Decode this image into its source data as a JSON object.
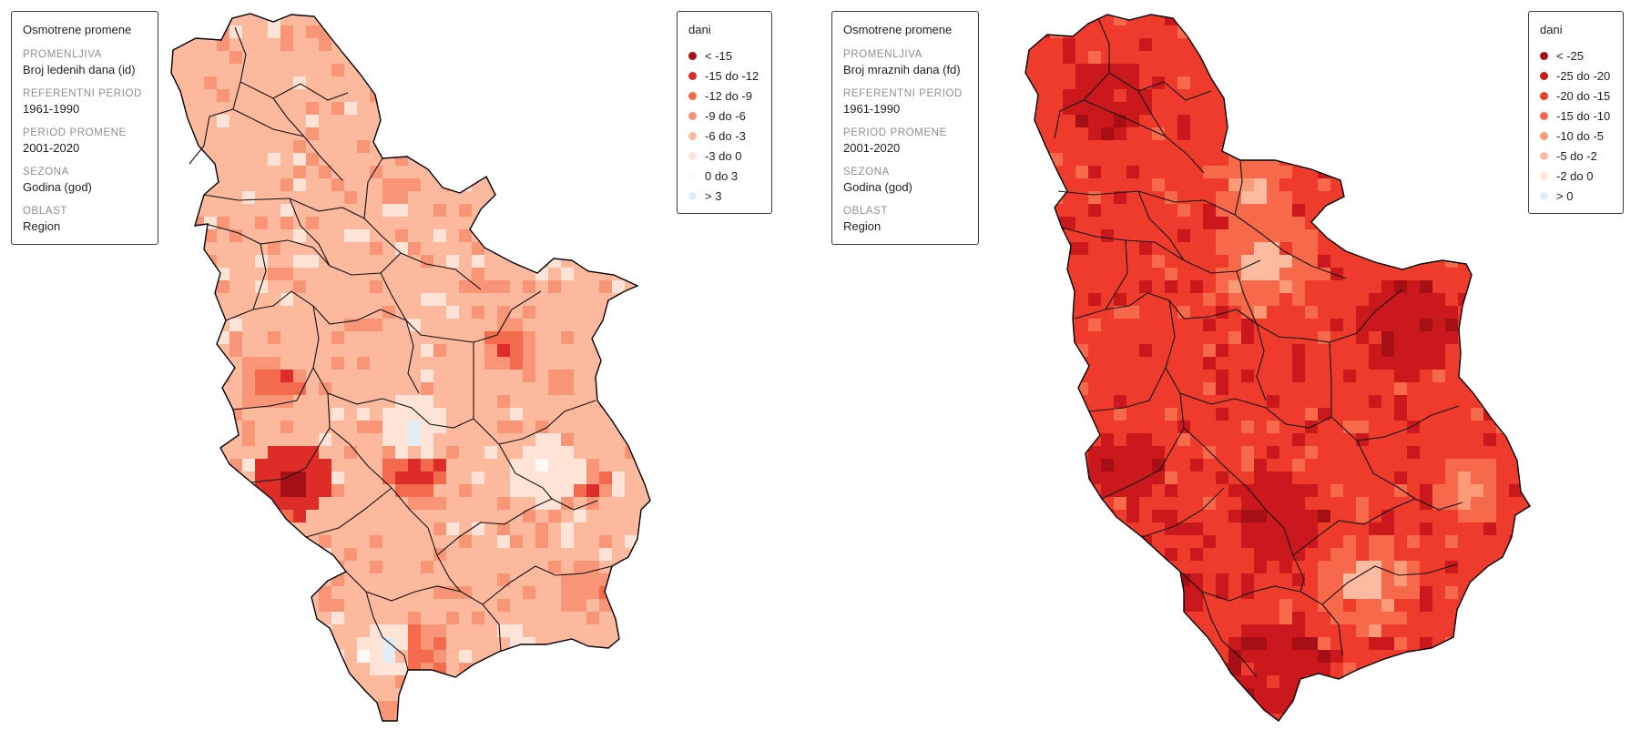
{
  "maps": [
    {
      "info": {
        "title": "Osmotrene promene",
        "variable_label": "PROMENLJIVA",
        "variable": "Broj ledenih dana (id)",
        "ref_label": "REFERENTNI PERIOD",
        "ref_period": "1961-1990",
        "change_label": "PERIOD PROMENE",
        "change_period": "2001-2020",
        "season_label": "SEZONA",
        "season": "Godina (god)",
        "area_label": "OBLAST",
        "area": "Region"
      },
      "legend": {
        "title": "dani",
        "items": [
          {
            "label": "< -15",
            "color": "#a50f15"
          },
          {
            "label": "-15 do -12",
            "color": "#de2d26"
          },
          {
            "label": "-12 do -9",
            "color": "#f46a4c"
          },
          {
            "label": "-9 do -6",
            "color": "#f99577"
          },
          {
            "label": "-6 do -3",
            "color": "#fcb99e"
          },
          {
            "label": "-3 do 0",
            "color": "#fee3d6"
          },
          {
            "label": "0 do 3",
            "color": "#fff9f5"
          },
          {
            "label": "> 3",
            "color": "#e3ecf5"
          }
        ]
      },
      "dominant_class": 4
    },
    {
      "info": {
        "title": "Osmotrene promene",
        "variable_label": "PROMENLJIVA",
        "variable": "Broj mraznih dana (fd)",
        "ref_label": "REFERENTNI PERIOD",
        "ref_period": "1961-1990",
        "change_label": "PERIOD PROMENE",
        "change_period": "2001-2020",
        "season_label": "SEZONA",
        "season": "Godina (god)",
        "area_label": "OBLAST",
        "area": "Region"
      },
      "legend": {
        "title": "dani",
        "items": [
          {
            "label": "< -25",
            "color": "#a50f15"
          },
          {
            "label": "-25 do -20",
            "color": "#cb181d"
          },
          {
            "label": "-20 do -15",
            "color": "#ef3b2c"
          },
          {
            "label": "-15 do -10",
            "color": "#f6694a"
          },
          {
            "label": "-10 do -5",
            "color": "#fb9a76"
          },
          {
            "label": "-5 do -2",
            "color": "#fcbba1"
          },
          {
            "label": "-2 do 0",
            "color": "#fee5d9"
          },
          {
            "label": "> 0",
            "color": "#e3ecf5"
          }
        ]
      },
      "dominant_class": 2
    }
  ]
}
